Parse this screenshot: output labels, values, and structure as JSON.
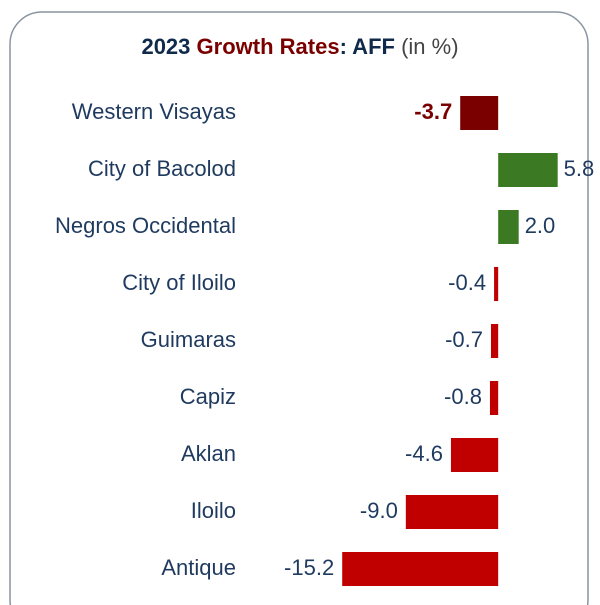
{
  "chart_data": {
    "type": "hbar",
    "title_parts": [
      "2023",
      "Growth Rates",
      ": AFF",
      "(in %)"
    ],
    "categories": [
      "Western Visayas",
      "City of Bacolod",
      "Negros Occidental",
      "City of Iloilo",
      "Guimaras",
      "Capiz",
      "Aklan",
      "Iloilo",
      "Antique"
    ],
    "values": [
      -3.7,
      5.8,
      2.0,
      -0.4,
      -0.7,
      -0.8,
      -4.6,
      -9.0,
      -15.2
    ],
    "value_labels": [
      "-3.7",
      "5.8",
      "2.0",
      "-0.4",
      "-0.7",
      "-0.8",
      "-4.6",
      "-9.0",
      "-15.2"
    ],
    "colors": [
      "#7a0000",
      "#3b7a23",
      "#3b7a23",
      "#c00000",
      "#c00000",
      "#c00000",
      "#c00000",
      "#c00000",
      "#c00000"
    ],
    "xlim": [
      -16,
      7
    ]
  }
}
